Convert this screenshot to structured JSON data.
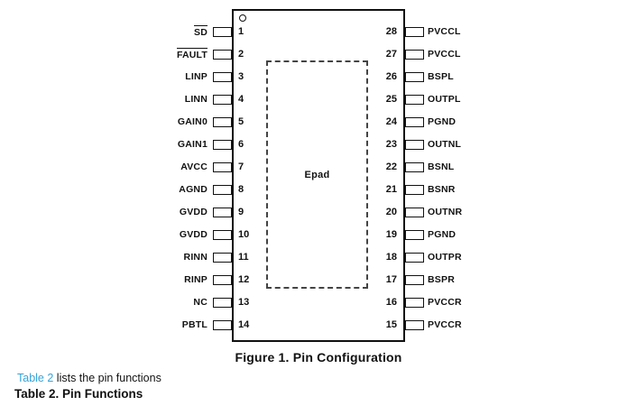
{
  "diagram": {
    "epad_label": "Epad",
    "caption": "Figure 1. Pin Configuration",
    "pin1_indicator": "circle",
    "pins_left": [
      {
        "num": "1",
        "label": "SD",
        "overline": true
      },
      {
        "num": "2",
        "label": "FAULT",
        "overline": true
      },
      {
        "num": "3",
        "label": "LINP",
        "overline": false
      },
      {
        "num": "4",
        "label": "LINN",
        "overline": false
      },
      {
        "num": "5",
        "label": "GAIN0",
        "overline": false
      },
      {
        "num": "6",
        "label": "GAIN1",
        "overline": false
      },
      {
        "num": "7",
        "label": "AVCC",
        "overline": false
      },
      {
        "num": "8",
        "label": "AGND",
        "overline": false
      },
      {
        "num": "9",
        "label": "GVDD",
        "overline": false
      },
      {
        "num": "10",
        "label": "GVDD",
        "overline": false
      },
      {
        "num": "11",
        "label": "RINN",
        "overline": false
      },
      {
        "num": "12",
        "label": "RINP",
        "overline": false
      },
      {
        "num": "13",
        "label": "NC",
        "overline": false
      },
      {
        "num": "14",
        "label": "PBTL",
        "overline": false
      }
    ],
    "pins_right": [
      {
        "num": "28",
        "label": "PVCCL",
        "overline": false
      },
      {
        "num": "27",
        "label": "PVCCL",
        "overline": false
      },
      {
        "num": "26",
        "label": "BSPL",
        "overline": false
      },
      {
        "num": "25",
        "label": "OUTPL",
        "overline": false
      },
      {
        "num": "24",
        "label": "PGND",
        "overline": false
      },
      {
        "num": "23",
        "label": "OUTNL",
        "overline": false
      },
      {
        "num": "22",
        "label": "BSNL",
        "overline": false
      },
      {
        "num": "21",
        "label": "BSNR",
        "overline": false
      },
      {
        "num": "20",
        "label": "OUTNR",
        "overline": false
      },
      {
        "num": "19",
        "label": "PGND",
        "overline": false
      },
      {
        "num": "18",
        "label": "OUTPR",
        "overline": false
      },
      {
        "num": "17",
        "label": "BSPR",
        "overline": false
      },
      {
        "num": "16",
        "label": "PVCCR",
        "overline": false
      },
      {
        "num": "15",
        "label": "PVCCR",
        "overline": false
      }
    ]
  },
  "footer": {
    "link_text": "Table 2",
    "note_rest": " lists the pin functions",
    "table_title": "Table 2. Pin Functions"
  },
  "colors": {
    "ink": "#111111",
    "link_blue": "#35a3da",
    "background": "#ffffff"
  }
}
